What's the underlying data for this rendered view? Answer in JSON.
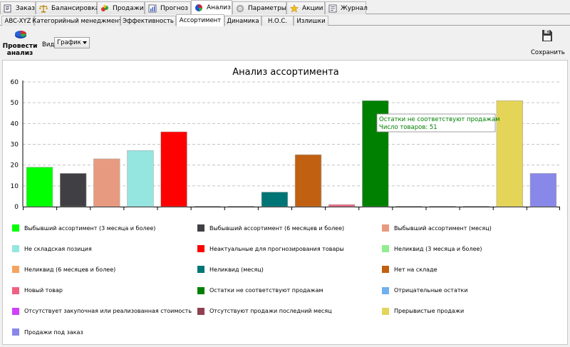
{
  "top_tabs": [
    {
      "label": "Заказ",
      "icon": "order-icon",
      "active": false
    },
    {
      "label": "Балансировка",
      "icon": "scales-icon",
      "active": false
    },
    {
      "label": "Продажи",
      "icon": "sales-icon",
      "active": false
    },
    {
      "label": "Прогноз",
      "icon": "forecast-chart-icon",
      "active": false
    },
    {
      "label": "Анализ",
      "icon": "pie-chart-icon",
      "active": true
    },
    {
      "label": "Параметры",
      "icon": "parameters-icon",
      "active": false
    },
    {
      "label": "Акции",
      "icon": "star-icon",
      "active": false
    },
    {
      "label": "Журнал",
      "icon": "journal-icon",
      "active": false
    }
  ],
  "sub_tabs": [
    {
      "label": "ABC-XYZ",
      "active": false
    },
    {
      "label": "Категорийный менеджмент",
      "active": false
    },
    {
      "label": "Эффективность",
      "active": false
    },
    {
      "label": "Ассортимент",
      "active": true
    },
    {
      "label": "Динамика",
      "active": false
    },
    {
      "label": "Н.О.С.",
      "active": false
    },
    {
      "label": "Излишки",
      "active": false
    }
  ],
  "toolbar": {
    "analyze_label": "Провести анализ",
    "view_label": "Вид",
    "view_value": "График",
    "save_label": "Сохранить"
  },
  "tooltip": {
    "line1": "Остатки не соответствуют продажам",
    "line2": "Число товаров: 51"
  },
  "chart_data": {
    "type": "bar",
    "title": "Анализ ассортимента",
    "ylim": [
      0,
      60
    ],
    "yticks": [
      0,
      10,
      20,
      30,
      40,
      50,
      60
    ],
    "grid": true,
    "legend_position": "bottom",
    "series": [
      {
        "name": "Выбывший ассортимент (3 месяца и более)",
        "value": 19,
        "color": "#00ff00"
      },
      {
        "name": "Выбывший ассортимент (6 месяцев и более)",
        "value": 16,
        "color": "#404044"
      },
      {
        "name": "Выбывший ассортимент (месяц)",
        "value": 23,
        "color": "#e89a80"
      },
      {
        "name": "Не складская позиция",
        "value": 27,
        "color": "#95e5e0"
      },
      {
        "name": "Неактуальные для прогнозирования товары",
        "value": 36,
        "color": "#ff0000"
      },
      {
        "name": "Неликвид (3 месяца и более)",
        "value": 0,
        "color": "#90ee90"
      },
      {
        "name": "Неликвид (6 месяцев и более)",
        "value": 0,
        "color": "#f4a460"
      },
      {
        "name": "Неликвид (месяц)",
        "value": 7,
        "color": "#007575"
      },
      {
        "name": "Нет на складе",
        "value": 25,
        "color": "#c06010"
      },
      {
        "name": "Новый товар",
        "value": 1,
        "color": "#f06080"
      },
      {
        "name": "Остатки не соответствуют продажам",
        "value": 51,
        "color": "#008000"
      },
      {
        "name": "Отрицательные остатки",
        "value": 0,
        "color": "#70b0f0"
      },
      {
        "name": "Отсутствует закупочная или реализованная стоимость",
        "value": 0,
        "color": "#d040ff"
      },
      {
        "name": "Отсутствуют продажи последний месяц",
        "value": 0,
        "color": "#904050"
      },
      {
        "name": "Прерывистые продажи",
        "value": 51,
        "color": "#e4d458"
      },
      {
        "name": "Продажи под заказ",
        "value": 16,
        "color": "#8888e8"
      }
    ]
  }
}
